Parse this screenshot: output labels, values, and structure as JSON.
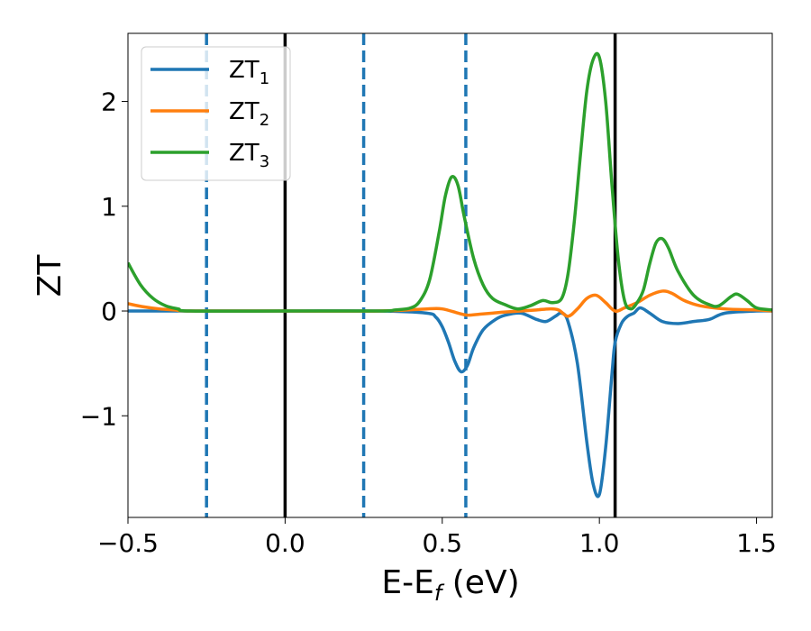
{
  "chart_data": {
    "type": "line",
    "xlabel": "E-E",
    "xlabel_sub": "f",
    "xlabel_unit": " (eV)",
    "ylabel": "ZT",
    "xlim": [
      -0.5,
      1.55
    ],
    "ylim": [
      -1.97,
      2.65
    ],
    "xticks": [
      -0.5,
      0.0,
      0.5,
      1.0,
      1.5
    ],
    "xtick_labels": [
      "−0.5",
      "0.0",
      "0.5",
      "1.0",
      "1.5"
    ],
    "yticks": [
      -1,
      0,
      1,
      2
    ],
    "ytick_labels": [
      "−1",
      "0",
      "1",
      "2"
    ],
    "grid": false,
    "legend_position": "top-left",
    "vlines": [
      {
        "x": -0.25,
        "style": "dashed",
        "color": "#1f77b4"
      },
      {
        "x": 0.0,
        "style": "solid",
        "color": "#000000"
      },
      {
        "x": 0.25,
        "style": "dashed",
        "color": "#1f77b4"
      },
      {
        "x": 0.575,
        "style": "dashed",
        "color": "#1f77b4"
      },
      {
        "x": 1.05,
        "style": "solid",
        "color": "#000000"
      }
    ],
    "series": [
      {
        "name": "ZT",
        "sub": "1",
        "color": "#1f77b4",
        "x": [
          -0.5,
          -0.3,
          0.0,
          0.3,
          0.45,
          0.48,
          0.5,
          0.52,
          0.54,
          0.56,
          0.58,
          0.6,
          0.63,
          0.67,
          0.7,
          0.75,
          0.8,
          0.83,
          0.86,
          0.88,
          0.9,
          0.93,
          0.96,
          0.98,
          1.0,
          1.02,
          1.04,
          1.05,
          1.07,
          1.09,
          1.11,
          1.13,
          1.16,
          1.2,
          1.25,
          1.3,
          1.35,
          1.4,
          1.5,
          1.55
        ],
        "values": [
          0.0,
          0.0,
          0.0,
          0.0,
          -0.02,
          -0.06,
          -0.15,
          -0.3,
          -0.48,
          -0.58,
          -0.52,
          -0.35,
          -0.18,
          -0.08,
          -0.04,
          -0.02,
          -0.08,
          -0.1,
          -0.05,
          -0.02,
          -0.1,
          -0.5,
          -1.25,
          -1.65,
          -1.75,
          -1.3,
          -0.6,
          -0.3,
          -0.12,
          -0.05,
          -0.02,
          0.03,
          -0.02,
          -0.1,
          -0.12,
          -0.1,
          -0.08,
          -0.02,
          0.0,
          0.0
        ]
      },
      {
        "name": "ZT",
        "sub": "2",
        "color": "#ff7f0e",
        "x": [
          -0.5,
          -0.45,
          -0.4,
          -0.35,
          -0.3,
          0.0,
          0.3,
          0.45,
          0.5,
          0.55,
          0.58,
          0.62,
          0.66,
          0.7,
          0.75,
          0.8,
          0.84,
          0.87,
          0.9,
          0.93,
          0.96,
          0.99,
          1.02,
          1.05,
          1.08,
          1.12,
          1.16,
          1.2,
          1.23,
          1.27,
          1.32,
          1.4,
          1.5,
          1.55
        ],
        "values": [
          0.07,
          0.04,
          0.02,
          0.01,
          0.0,
          0.0,
          0.0,
          0.02,
          0.02,
          -0.02,
          -0.04,
          -0.03,
          -0.02,
          -0.01,
          0.0,
          0.01,
          0.02,
          0.01,
          -0.05,
          0.02,
          0.12,
          0.15,
          0.08,
          0.0,
          0.03,
          0.08,
          0.15,
          0.19,
          0.17,
          0.1,
          0.05,
          0.02,
          0.01,
          0.0
        ]
      },
      {
        "name": "ZT",
        "sub": "3",
        "color": "#2ca02c",
        "x": [
          -0.5,
          -0.46,
          -0.42,
          -0.38,
          -0.34,
          -0.3,
          0.0,
          0.3,
          0.35,
          0.4,
          0.43,
          0.46,
          0.49,
          0.51,
          0.53,
          0.55,
          0.57,
          0.6,
          0.63,
          0.66,
          0.7,
          0.74,
          0.78,
          0.82,
          0.85,
          0.88,
          0.9,
          0.92,
          0.94,
          0.96,
          0.98,
          1.0,
          1.02,
          1.04,
          1.06,
          1.08,
          1.1,
          1.12,
          1.14,
          1.16,
          1.18,
          1.2,
          1.22,
          1.25,
          1.3,
          1.35,
          1.38,
          1.42,
          1.44,
          1.47,
          1.5,
          1.55
        ],
        "values": [
          0.46,
          0.25,
          0.12,
          0.05,
          0.02,
          0.0,
          0.0,
          0.0,
          0.01,
          0.03,
          0.1,
          0.3,
          0.75,
          1.1,
          1.28,
          1.2,
          0.9,
          0.5,
          0.25,
          0.12,
          0.06,
          0.02,
          0.05,
          0.1,
          0.08,
          0.12,
          0.35,
          0.85,
          1.5,
          2.1,
          2.4,
          2.42,
          2.0,
          1.2,
          0.5,
          0.1,
          0.02,
          0.08,
          0.2,
          0.45,
          0.65,
          0.69,
          0.6,
          0.38,
          0.15,
          0.06,
          0.05,
          0.14,
          0.16,
          0.1,
          0.03,
          0.01
        ]
      }
    ]
  }
}
